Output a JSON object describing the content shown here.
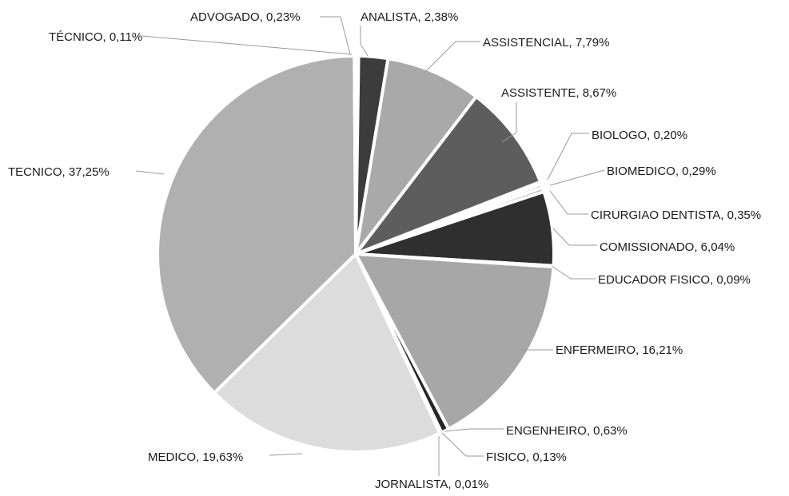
{
  "chart_data": {
    "type": "pie",
    "title": "",
    "slices": [
      {
        "label": "ADVOGADO, 0,23%",
        "name": "ADVOGADO",
        "value": 0.23,
        "color": "#cfcfcf"
      },
      {
        "label": "ANALISTA, 2,38%",
        "name": "ANALISTA",
        "value": 2.38,
        "color": "#3c3c3c"
      },
      {
        "label": "ASSISTENCIAL, 7,79%",
        "name": "ASSISTENCIAL",
        "value": 7.79,
        "color": "#a9a9a9"
      },
      {
        "label": "ASSISTENTE, 8,67%",
        "name": "ASSISTENTE",
        "value": 8.67,
        "color": "#5d5d5d"
      },
      {
        "label": "BIOLOGO, 0,20%",
        "name": "BIOLOGO",
        "value": 0.2,
        "color": "#c2c2c2"
      },
      {
        "label": "BIOMEDICO, 0,29%",
        "name": "BIOMEDICO",
        "value": 0.29,
        "color": "#8c8c8c"
      },
      {
        "label": "CIRURGIAO DENTISTA, 0,35%",
        "name": "CIRURGIAO DENTISTA",
        "value": 0.35,
        "color": "#b5b5b5"
      },
      {
        "label": "COMISSIONADO, 6,04%",
        "name": "COMISSIONADO",
        "value": 6.04,
        "color": "#2f2f2f"
      },
      {
        "label": "EDUCADOR FISICO, 0,09%",
        "name": "EDUCADOR FISICO",
        "value": 0.09,
        "color": "#d5d5d5"
      },
      {
        "label": "ENFERMEIRO, 16,21%",
        "name": "ENFERMEIRO",
        "value": 16.21,
        "color": "#a7a7a7"
      },
      {
        "label": "ENGENHEIRO, 0,63%",
        "name": "ENGENHEIRO",
        "value": 0.63,
        "color": "#262626"
      },
      {
        "label": "FISICO, 0,13%",
        "name": "FISICO",
        "value": 0.13,
        "color": "#cacaca"
      },
      {
        "label": "JORNALISTA, 0,01%",
        "name": "JORNALISTA",
        "value": 0.01,
        "color": "#6e6e6e"
      },
      {
        "label": "MEDICO, 19,63%",
        "name": "MEDICO",
        "value": 19.63,
        "color": "#dcdcdc"
      },
      {
        "label": "TECNICO, 37,25%",
        "name": "TECNICO",
        "value": 37.25,
        "color": "#b0b0b0"
      },
      {
        "label": "TÉCNICO, 0,11%",
        "name": "TÉCNICO",
        "value": 0.11,
        "color": "#e6e6e6"
      }
    ],
    "legend": "none",
    "start_angle_deg": 0,
    "direction": "clockwise"
  }
}
